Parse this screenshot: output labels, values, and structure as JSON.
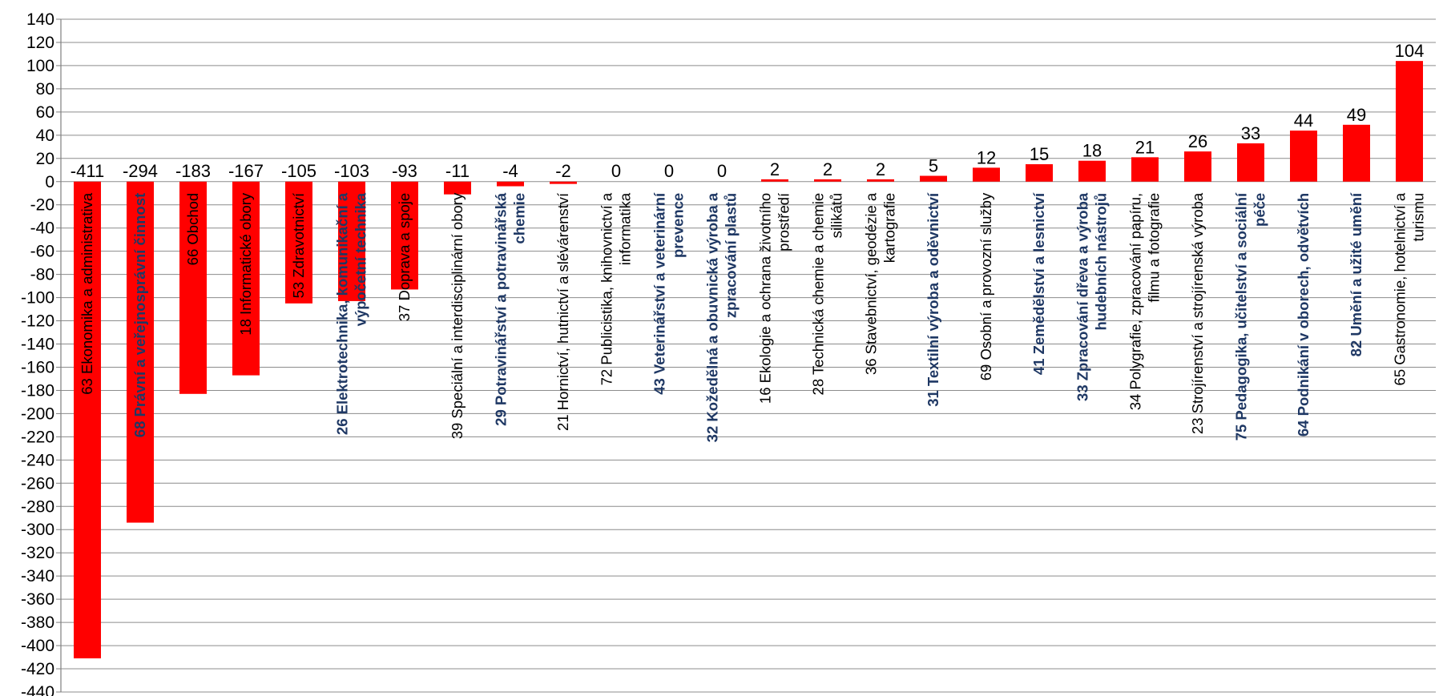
{
  "chart_data": {
    "type": "bar",
    "title": "",
    "xlabel": "",
    "ylabel": "",
    "ylim": [
      -440,
      140
    ],
    "ytick_step": 20,
    "grid": true,
    "bar_color": "#ff0000",
    "categories": [
      {
        "lines": [
          "63 Ekonomika a administrativa"
        ],
        "bold": false
      },
      {
        "lines": [
          "68 Právní a veřejnosprávní činnost"
        ],
        "bold": true
      },
      {
        "lines": [
          "66 Obchod"
        ],
        "bold": false
      },
      {
        "lines": [
          "18 Informatické obory"
        ],
        "bold": false
      },
      {
        "lines": [
          "53 Zdravotnictví"
        ],
        "bold": false
      },
      {
        "lines": [
          "26 Elektrotechnika, komunikační a",
          "výpočetní technika"
        ],
        "bold": true
      },
      {
        "lines": [
          "37 Doprava a spoje"
        ],
        "bold": false
      },
      {
        "lines": [
          "39 Speciální a interdisciplinární obory"
        ],
        "bold": false
      },
      {
        "lines": [
          "29 Potravinářství a potravinářská",
          "chemie"
        ],
        "bold": true
      },
      {
        "lines": [
          "21 Hornictví, hutnictví a slévárenství"
        ],
        "bold": false
      },
      {
        "lines": [
          "72 Publicistika, knihovnictví a",
          "informatika"
        ],
        "bold": false
      },
      {
        "lines": [
          "43 Veterinářství a veterinární",
          "prevence"
        ],
        "bold": true
      },
      {
        "lines": [
          "32 Kožedělná a obuvnická výroba a",
          "zpracování plastů"
        ],
        "bold": true
      },
      {
        "lines": [
          "16 Ekologie a ochrana životního",
          "prostředí"
        ],
        "bold": false
      },
      {
        "lines": [
          "28 Technická chemie a chemie",
          "silikátů"
        ],
        "bold": false
      },
      {
        "lines": [
          "36 Stavebnictví, geodézie a",
          "kartografie"
        ],
        "bold": false
      },
      {
        "lines": [
          "31 Textilní výroba a oděvnictví"
        ],
        "bold": true
      },
      {
        "lines": [
          "69 Osobní a provozní služby"
        ],
        "bold": false
      },
      {
        "lines": [
          "41 Zemědělství a lesnictví"
        ],
        "bold": true
      },
      {
        "lines": [
          "33 Zpracování dřeva a výroba",
          "hudebních nástrojů"
        ],
        "bold": true
      },
      {
        "lines": [
          "34 Polygrafie, zpracování papíru,",
          "filmu a fotografie"
        ],
        "bold": false
      },
      {
        "lines": [
          "23 Strojírenství a strojírenská výroba"
        ],
        "bold": false
      },
      {
        "lines": [
          "75 Pedagogika, učitelství a sociální",
          "péče"
        ],
        "bold": true
      },
      {
        "lines": [
          "64 Podnikání v oborech, odvětvích"
        ],
        "bold": true
      },
      {
        "lines": [
          "82 Umění a užité umění"
        ],
        "bold": true
      },
      {
        "lines": [
          "65 Gastronomie, hotelnictví a",
          "turismu"
        ],
        "bold": false
      }
    ],
    "values": [
      -411,
      -294,
      -183,
      -167,
      -105,
      -103,
      -93,
      -11,
      -4,
      -2,
      0,
      0,
      0,
      2,
      2,
      2,
      5,
      12,
      15,
      18,
      21,
      26,
      33,
      44,
      49,
      104
    ]
  }
}
